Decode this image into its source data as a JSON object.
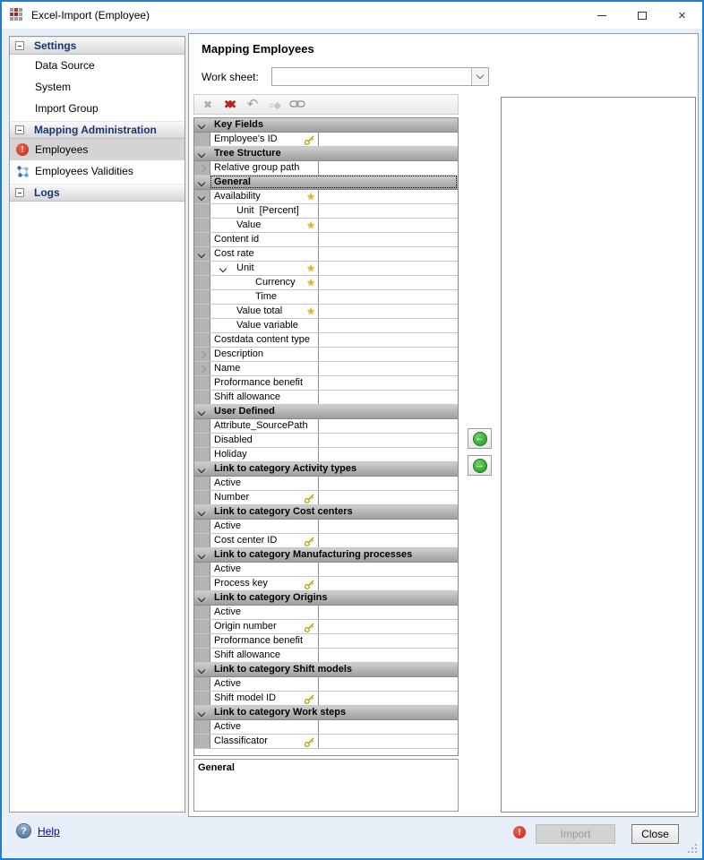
{
  "window": {
    "title": "Excel-Import (Employee)"
  },
  "titlebar_controls": [
    {
      "name": "minimize"
    },
    {
      "name": "maximize"
    },
    {
      "name": "close"
    }
  ],
  "sidebar": {
    "sections": [
      {
        "label": "Settings",
        "items": [
          {
            "label": "Data Source"
          },
          {
            "label": "System"
          },
          {
            "label": "Import Group"
          }
        ]
      },
      {
        "label": "Mapping Administration",
        "items": [
          {
            "label": "Employees",
            "icon": "error-icon",
            "selected": true
          },
          {
            "label": "Employees Validities",
            "icon": "validities-icon"
          }
        ]
      },
      {
        "label": "Logs",
        "items": []
      }
    ]
  },
  "main": {
    "title": "Mapping Employees",
    "worksheet": {
      "label": "Work sheet:",
      "value": ""
    },
    "toolbar": [
      {
        "name": "delete",
        "icon": "delete-icon"
      },
      {
        "name": "delete-all",
        "icon": "delete-all-icon"
      },
      {
        "name": "undo",
        "icon": "undo-icon"
      },
      {
        "name": "automap",
        "icon": "automap-icon"
      },
      {
        "name": "link",
        "icon": "link-icon"
      }
    ],
    "rows": [
      {
        "type": "group",
        "label": "Key Fields"
      },
      {
        "type": "field",
        "label": "Employee's ID",
        "badge": "key"
      },
      {
        "type": "group",
        "label": "Tree Structure"
      },
      {
        "type": "field",
        "label": "Relative group path",
        "gutter": "right"
      },
      {
        "type": "group",
        "label": "General",
        "focused": true
      },
      {
        "type": "field",
        "label": "Availability",
        "gutter": "down",
        "badge": "star"
      },
      {
        "type": "field",
        "label": "Unit  [Percent]",
        "indent": 1
      },
      {
        "type": "field",
        "label": "Value",
        "indent": 1,
        "badge": "star"
      },
      {
        "type": "field",
        "label": "Content id"
      },
      {
        "type": "field",
        "label": "Cost rate",
        "gutter": "down"
      },
      {
        "type": "field",
        "label": "Unit",
        "indent": 1,
        "inline_chevron": true,
        "badge": "star"
      },
      {
        "type": "field",
        "label": "Currency",
        "indent": 2,
        "badge": "star"
      },
      {
        "type": "field",
        "label": "Time",
        "indent": 2
      },
      {
        "type": "field",
        "label": "Value total",
        "indent": 1,
        "badge": "star"
      },
      {
        "type": "field",
        "label": "Value variable",
        "indent": 1
      },
      {
        "type": "field",
        "label": "Costdata content type"
      },
      {
        "type": "field",
        "label": "Description",
        "gutter": "right"
      },
      {
        "type": "field",
        "label": "Name",
        "gutter": "right"
      },
      {
        "type": "field",
        "label": "Proformance benefit"
      },
      {
        "type": "field",
        "label": "Shift allowance"
      },
      {
        "type": "group",
        "label": "User Defined"
      },
      {
        "type": "field",
        "label": "Attribute_SourcePath"
      },
      {
        "type": "field",
        "label": "Disabled"
      },
      {
        "type": "field",
        "label": "Holiday"
      },
      {
        "type": "group",
        "label": "Link to category Activity types"
      },
      {
        "type": "field",
        "label": "Active"
      },
      {
        "type": "field",
        "label": "Number",
        "badge": "key"
      },
      {
        "type": "group",
        "label": "Link to category Cost centers"
      },
      {
        "type": "field",
        "label": "Active"
      },
      {
        "type": "field",
        "label": "Cost center ID",
        "badge": "key"
      },
      {
        "type": "group",
        "label": "Link to category Manufacturing processes"
      },
      {
        "type": "field",
        "label": "Active"
      },
      {
        "type": "field",
        "label": "Process key",
        "badge": "key"
      },
      {
        "type": "group",
        "label": "Link to category Origins"
      },
      {
        "type": "field",
        "label": "Active"
      },
      {
        "type": "field",
        "label": "Origin number",
        "badge": "key"
      },
      {
        "type": "field",
        "label": "Proformance benefit"
      },
      {
        "type": "field",
        "label": "Shift allowance"
      },
      {
        "type": "group",
        "label": "Link to category Shift models"
      },
      {
        "type": "field",
        "label": "Active"
      },
      {
        "type": "field",
        "label": "Shift model ID",
        "badge": "key"
      },
      {
        "type": "group",
        "label": "Link to category Work steps"
      },
      {
        "type": "field",
        "label": "Active"
      },
      {
        "type": "field",
        "label": "Classificator",
        "badge": "key"
      }
    ],
    "description": "General"
  },
  "transfer_buttons": [
    {
      "name": "move-left",
      "icon": "green-arrow-left-icon"
    },
    {
      "name": "move-right",
      "icon": "green-arrow-right-icon"
    }
  ],
  "footer": {
    "help_label": "Help",
    "import_label": "Import",
    "close_label": "Close"
  },
  "colors": {
    "accent": "#1c7fd6",
    "error": "#c3271b",
    "key_gold": "#c9a227",
    "star_gold": "#e3b72c",
    "section_header_text": "#17366e"
  }
}
